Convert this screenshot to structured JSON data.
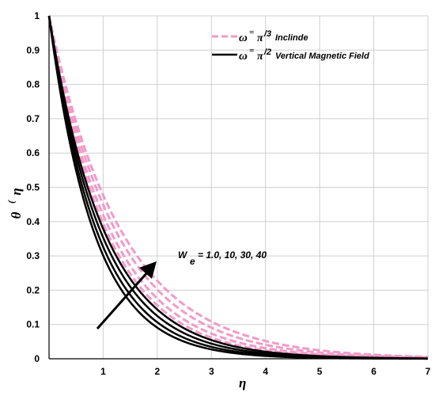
{
  "chart_data": {
    "type": "line",
    "xlabel": "η",
    "ylabel": {
      "main": "θ",
      "paren": "(",
      "var": "η"
    },
    "xlim": [
      0,
      7
    ],
    "ylim": [
      0,
      1
    ],
    "xticks": [
      "1",
      "2",
      "3",
      "4",
      "5",
      "6",
      "7"
    ],
    "yticks": [
      "0",
      "0.1",
      "0.2",
      "0.3",
      "0.4",
      "0.5",
      "0.6",
      "0.7",
      "0.8",
      "0.9",
      "1"
    ],
    "grid": true,
    "legend_position": "top-right",
    "legend": [
      {
        "symbol": "ω",
        "eq": "=",
        "frac": "π",
        "sup": "/3",
        "text": "Inclinde",
        "style": "dashed",
        "color": "#f29ac8"
      },
      {
        "symbol": "ω",
        "eq": "=",
        "frac": "π",
        "sup": "/2",
        "text": "Vertical Magnetic Field",
        "style": "solid",
        "color": "#000000"
      }
    ],
    "annotation": {
      "base": "W",
      "sub": "e",
      "text": "= 1.0, 10, 30, 40"
    },
    "parameter_values": [
      1.0,
      10,
      30,
      40
    ],
    "series": [
      {
        "group": "inclined",
        "We": 1.0,
        "decay_rate": 0.74,
        "color": "#f29ac8",
        "dash": true
      },
      {
        "group": "inclined",
        "We": 10,
        "decay_rate": 0.8,
        "color": "#f29ac8",
        "dash": true
      },
      {
        "group": "inclined",
        "We": 30,
        "decay_rate": 0.87,
        "color": "#f29ac8",
        "dash": true
      },
      {
        "group": "inclined",
        "We": 40,
        "decay_rate": 0.93,
        "color": "#f29ac8",
        "dash": true
      },
      {
        "group": "vertical",
        "We": 1.0,
        "decay_rate": 0.97,
        "color": "#000000",
        "dash": false
      },
      {
        "group": "vertical",
        "We": 10,
        "decay_rate": 1.04,
        "color": "#000000",
        "dash": false
      },
      {
        "group": "vertical",
        "We": 30,
        "decay_rate": 1.12,
        "color": "#000000",
        "dash": false
      },
      {
        "group": "vertical",
        "We": 40,
        "decay_rate": 1.2,
        "color": "#000000",
        "dash": false
      }
    ]
  }
}
